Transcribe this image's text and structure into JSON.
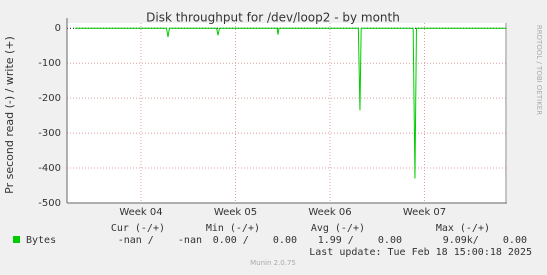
{
  "chart_data": {
    "type": "line",
    "title": "Disk throughput for /dev/loop2 - by month",
    "y_label": "Pr second read (-) / write (+)",
    "side_label": "RRDTOOL / TOBI OETIKER",
    "x": [
      3.3,
      4.27,
      4.286,
      4.3,
      4.8,
      4.815,
      4.83,
      5.44,
      5.45,
      5.46,
      6.3,
      6.317,
      6.33,
      6.88,
      6.899,
      6.915,
      7.87
    ],
    "series": [
      {
        "name": "Bytes",
        "color": "#00cc00",
        "values": [
          0,
          0,
          -25,
          0,
          0,
          -20,
          0,
          0,
          -18,
          0,
          0,
          -235,
          0,
          0,
          -430,
          0,
          0
        ]
      }
    ],
    "xlim": [
      3.217,
      7.873
    ],
    "xticks": [
      {
        "value": 4,
        "label": "Week 04"
      },
      {
        "value": 5,
        "label": "Week 05"
      },
      {
        "value": 6,
        "label": "Week 06"
      },
      {
        "value": 7,
        "label": "Week 07"
      }
    ],
    "ylim": [
      -500,
      15
    ],
    "yticks": [
      0,
      -100,
      -200,
      -300,
      -400,
      -500
    ],
    "grid": true,
    "legend_table": {
      "headers": [
        "Cur (-/+)",
        "Min (-/+)",
        "Avg (-/+)",
        "Max (-/+)"
      ],
      "rows": [
        [
          "-nan /    -nan",
          "0.00 /    0.00",
          "1.99 /    0.00",
          "9.09k/    0.00"
        ]
      ]
    },
    "last_update": "Last update: Tue Feb 18 15:00:18 2025",
    "footer": "Munin 2.0.75"
  }
}
